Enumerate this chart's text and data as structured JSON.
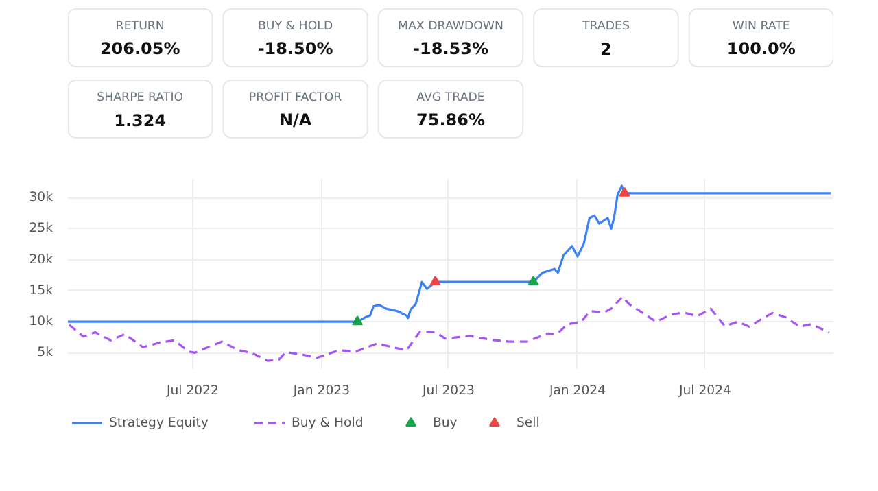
{
  "chart_data": [
    {
      "type": "other",
      "annotations": [
        "RETURN",
        "206.05%",
        "BUY & HOLD",
        "-18.50%",
        "MAX DRAWDOWN",
        "-18.53%",
        "TRADES",
        "2",
        "WIN RATE",
        "100.0%",
        "SHARPE RATIO",
        "1.324",
        "PROFIT FACTOR",
        "N/A",
        "AVG TRADE",
        "75.86%"
      ]
    },
    {
      "type": "line",
      "xlim": [
        "2022-01-04",
        "2024-12-31"
      ],
      "ylim": [
        2500,
        33000
      ],
      "xticks": [
        {
          "value": "2022-07-01",
          "label": "Jul 2022"
        },
        {
          "value": "2023-01-01",
          "label": "Jan 2023"
        },
        {
          "value": "2023-07-01",
          "label": "Jul 2023"
        },
        {
          "value": "2024-01-01",
          "label": "Jan 2024"
        },
        {
          "value": "2024-07-01",
          "label": "Jul 2024"
        }
      ],
      "yticks": [
        {
          "value": 5000,
          "label": "5k"
        },
        {
          "value": 10000,
          "label": "10k"
        },
        {
          "value": 15000,
          "label": "15k"
        },
        {
          "value": 20000,
          "label": "20k"
        },
        {
          "value": 25000,
          "label": "25k"
        },
        {
          "value": 30000,
          "label": "30k"
        }
      ],
      "grid": true,
      "legend": "bottom",
      "series": [
        {
          "name": "Strategy Equity",
          "type": "line",
          "color": "#3b82f6",
          "line_style": "solid",
          "x": [
            "2022-01-04",
            "2023-02-21",
            "2023-03-04",
            "2023-03-11",
            "2023-03-16",
            "2023-03-24",
            "2023-04-03",
            "2023-04-19",
            "2023-05-02",
            "2023-05-04",
            "2023-05-08",
            "2023-05-15",
            "2023-05-18",
            "2023-05-24",
            "2023-05-31",
            "2023-06-06",
            "2023-06-12",
            "2023-10-30",
            "2023-11-12",
            "2023-11-29",
            "2023-12-04",
            "2023-12-12",
            "2023-12-24",
            "2024-01-01",
            "2024-01-10",
            "2024-01-18",
            "2024-01-25",
            "2024-02-01",
            "2024-02-13",
            "2024-02-18",
            "2024-02-22",
            "2024-02-27",
            "2024-03-04",
            "2024-03-08",
            "2024-12-27"
          ],
          "values": [
            10000,
            10000,
            10700,
            11000,
            12500,
            12700,
            12100,
            11700,
            11000,
            10600,
            12000,
            12800,
            14000,
            16400,
            15300,
            15800,
            16400,
            16400,
            17900,
            18500,
            17900,
            20700,
            22200,
            20500,
            22600,
            26700,
            27100,
            25800,
            26700,
            25000,
            26700,
            30400,
            31900,
            30700,
            30700
          ]
        },
        {
          "name": "Buy & Hold",
          "type": "line",
          "color": "#a855f7",
          "line_style": "dashed",
          "x": [
            "2022-01-06",
            "2022-01-26",
            "2022-02-12",
            "2022-03-06",
            "2022-03-26",
            "2022-04-21",
            "2022-05-17",
            "2022-06-05",
            "2022-06-25",
            "2022-07-04",
            "2022-07-27",
            "2022-08-12",
            "2022-09-04",
            "2022-09-23",
            "2022-10-16",
            "2022-11-01",
            "2022-11-11",
            "2022-12-04",
            "2022-12-26",
            "2023-01-25",
            "2023-02-19",
            "2023-03-21",
            "2023-04-12",
            "2023-05-02",
            "2023-05-21",
            "2023-06-13",
            "2023-06-26",
            "2023-08-01",
            "2023-08-30",
            "2023-09-25",
            "2023-10-21",
            "2023-11-19",
            "2023-12-02",
            "2023-12-18",
            "2024-01-06",
            "2024-01-19",
            "2024-02-08",
            "2024-02-18",
            "2024-03-05",
            "2024-03-15",
            "2024-04-03",
            "2024-04-22",
            "2024-05-12",
            "2024-05-31",
            "2024-06-20",
            "2024-07-09",
            "2024-07-29",
            "2024-08-17",
            "2024-09-02",
            "2024-09-19",
            "2024-10-05",
            "2024-10-24",
            "2024-11-13",
            "2024-11-29",
            "2024-12-25"
          ],
          "values": [
            9500,
            7600,
            8300,
            7000,
            8000,
            5900,
            6700,
            7000,
            5200,
            5000,
            6100,
            6800,
            5400,
            5000,
            3700,
            3900,
            5100,
            4700,
            4200,
            5400,
            5200,
            6500,
            5900,
            5400,
            8400,
            8300,
            7300,
            7700,
            7100,
            6800,
            6800,
            8100,
            8000,
            9600,
            10000,
            11700,
            11500,
            12100,
            14000,
            12800,
            11400,
            10000,
            11100,
            11500,
            10900,
            12100,
            9300,
            10000,
            9200,
            10400,
            11400,
            10700,
            9200,
            9600,
            8300
          ]
        },
        {
          "name": "Buy",
          "type": "scatter",
          "marker": "triangle",
          "color": "#16a34a",
          "x": [
            "2023-02-21",
            "2023-10-30"
          ],
          "values": [
            10000,
            16400
          ]
        },
        {
          "name": "Sell",
          "type": "scatter",
          "marker": "triangle",
          "color": "#ef4444",
          "x": [
            "2023-06-12",
            "2024-03-08"
          ],
          "values": [
            16400,
            30700
          ]
        }
      ]
    }
  ]
}
